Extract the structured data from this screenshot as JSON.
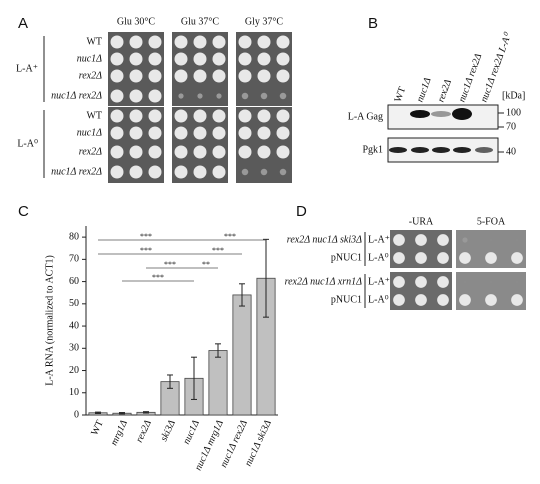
{
  "panels": {
    "a": {
      "label": "A",
      "columns": [
        "Glu 30°C",
        "Glu 37°C",
        "Gly 37°C"
      ],
      "groups": [
        {
          "label": "L-A⁺",
          "rows": [
            "WT",
            "nuc1Δ",
            "rex2Δ",
            "nuc1Δ rex2Δ"
          ]
        },
        {
          "label": "L-A⁰",
          "rows": [
            "WT",
            "nuc1Δ",
            "rex2Δ",
            "nuc1Δ rex2Δ"
          ]
        }
      ]
    },
    "b": {
      "label": "B",
      "lanes": [
        "WT",
        "nuc1Δ",
        "rex2Δ",
        "nuc1Δ rex2Δ",
        "nuc1Δ rex2Δ L-A⁰"
      ],
      "unit": "[kDa]",
      "blots": [
        "L-A Gag",
        "Pgk1"
      ],
      "markers": [
        "100",
        "70",
        "40"
      ]
    },
    "d": {
      "label": "D",
      "columns": [
        "-URA",
        "5-FOA"
      ],
      "groups": [
        {
          "strain": "rex2Δ nuc1Δ ski3Δ",
          "plasmid": "pNUC1",
          "rows": [
            "L-A⁺",
            "L-A⁰"
          ]
        },
        {
          "strain": "rex2Δ nuc1Δ xrn1Δ",
          "plasmid": "pNUC1",
          "rows": [
            "L-A⁺",
            "L-A⁰"
          ]
        }
      ]
    }
  },
  "chart_data": {
    "type": "bar",
    "panel_label": "C",
    "y_label": "L-A RNA (normalized to ACT1)",
    "categories": [
      "WT",
      "mrg1Δ",
      "rex2Δ",
      "ski3Δ",
      "nuc1Δ",
      "nuc1Δ mrg1Δ",
      "nuc1Δ rex2Δ",
      "nuc1Δ ski3Δ"
    ],
    "values": [
      1,
      0.8,
      1.2,
      15,
      16.5,
      29,
      54,
      61.5
    ],
    "errors": [
      0.3,
      0.3,
      0.3,
      3,
      9.5,
      3,
      5,
      17.5
    ],
    "color": "#c0c0c0",
    "ylim": [
      0,
      85
    ],
    "yticks": [
      0,
      10,
      20,
      30,
      40,
      50,
      60,
      70,
      80
    ],
    "annotations": [
      "***",
      "***",
      "***",
      "***",
      "***",
      "**",
      "***"
    ]
  }
}
